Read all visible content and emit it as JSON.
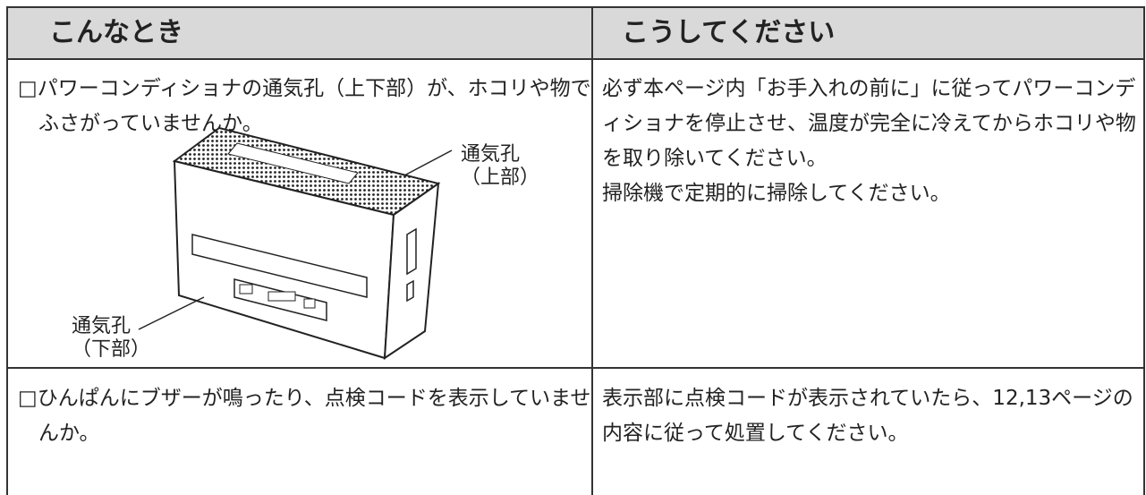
{
  "table": {
    "header": [
      "こんなとき",
      "こうしてください"
    ],
    "rows": [
      {
        "problem": "□パワーコンディショナの通気孔（上下部）が、ホコリや物でふさがっていませんか。",
        "remedy": [
          "必ず本ページ内「お手入れの前に」に従ってパワーコンディショナを停止させ、温度が完全に冷えてからホコリや物を取り除いてください。",
          "掃除機で定期的に掃除してください。"
        ],
        "labels": [
          [
            "通気孔",
            "（上部）"
          ],
          [
            "通気孔",
            "（下部）"
          ]
        ]
      },
      {
        "problem": "□ひんぱんにブザーが鳴ったり、点検コードを表示していませんか。",
        "remedy": [
          "表示部に点検コードが表示されていたら、12,13ページの内容に従って処置してください。"
        ]
      }
    ]
  }
}
